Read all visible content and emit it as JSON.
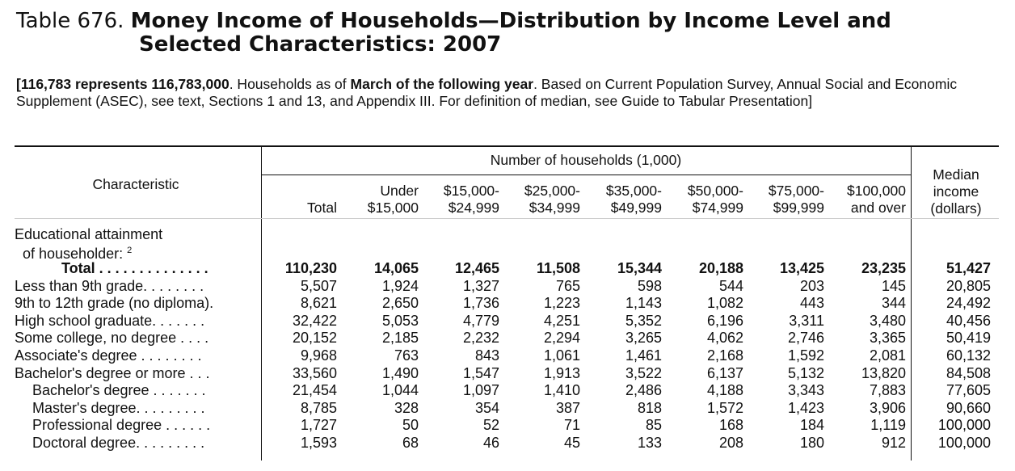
{
  "title": {
    "number": "Table 676.",
    "line1": "Money Income of Households—Distribution by Income Level and",
    "line2": "Selected Characteristics: 2007"
  },
  "note": {
    "bold1": "[116,783 represents 116,783,000",
    "text1": ". Households as of ",
    "bold2": "March of the following year",
    "text2": ". Based on Current Population Survey, Annual Social and Economic Supplement (ASEC), see text, Sections 1 and 13, and Appendix III. For definition of median, see Guide to Tabular Presentation]"
  },
  "header": {
    "characteristic": "Characteristic",
    "number_of_households": "Number of households (1,000)",
    "median_income": [
      "Median",
      "income",
      "(dollars)"
    ],
    "columns": [
      [
        "Total"
      ],
      [
        "Under",
        "$15,000"
      ],
      [
        "$15,000-",
        "$24,999"
      ],
      [
        "$25,000-",
        "$34,999"
      ],
      [
        "$35,000-",
        "$49,999"
      ],
      [
        "$50,000-",
        "$74,999"
      ],
      [
        "$75,000-",
        "$99,999"
      ],
      [
        "$100,000",
        "and over"
      ]
    ]
  },
  "section": {
    "line1": "Educational attainment",
    "line2": "of householder: ",
    "footnote": "2"
  },
  "rows": [
    {
      "label": "Total . . . . . . . . . . . . . .",
      "kind": "total",
      "values": [
        "110,230",
        "14,065",
        "12,465",
        "11,508",
        "15,344",
        "20,188",
        "13,425",
        "23,235",
        "51,427"
      ]
    },
    {
      "label": "Less than 9th grade. . . . . . . .",
      "kind": "normal",
      "values": [
        "5,507",
        "1,924",
        "1,327",
        "765",
        "598",
        "544",
        "203",
        "145",
        "20,805"
      ]
    },
    {
      "label": "9th to 12th grade (no diploma).",
      "kind": "normal",
      "values": [
        "8,621",
        "2,650",
        "1,736",
        "1,223",
        "1,143",
        "1,082",
        "443",
        "344",
        "24,492"
      ]
    },
    {
      "label": "High school graduate. . . . . . .",
      "kind": "normal",
      "values": [
        "32,422",
        "5,053",
        "4,779",
        "4,251",
        "5,352",
        "6,196",
        "3,311",
        "3,480",
        "40,456"
      ]
    },
    {
      "label": "Some college, no degree . . . .",
      "kind": "normal",
      "values": [
        "20,152",
        "2,185",
        "2,232",
        "2,294",
        "3,265",
        "4,062",
        "2,746",
        "3,365",
        "50,419"
      ]
    },
    {
      "label": "Associate's degree . . . . . . . .",
      "kind": "normal",
      "values": [
        "9,968",
        "763",
        "843",
        "1,061",
        "1,461",
        "2,168",
        "1,592",
        "2,081",
        "60,132"
      ]
    },
    {
      "label": "Bachelor's degree or more . . .",
      "kind": "normal",
      "values": [
        "33,560",
        "1,490",
        "1,547",
        "1,913",
        "3,522",
        "6,137",
        "5,132",
        "13,820",
        "84,508"
      ]
    },
    {
      "label": "Bachelor's degree . . . . . . .",
      "kind": "indent",
      "values": [
        "21,454",
        "1,044",
        "1,097",
        "1,410",
        "2,486",
        "4,188",
        "3,343",
        "7,883",
        "77,605"
      ]
    },
    {
      "label": "Master's degree. . . . . . . . .",
      "kind": "indent",
      "values": [
        "8,785",
        "328",
        "354",
        "387",
        "818",
        "1,572",
        "1,423",
        "3,906",
        "90,660"
      ]
    },
    {
      "label": "Professional degree . . . . . .",
      "kind": "indent",
      "values": [
        "1,727",
        "50",
        "52",
        "71",
        "85",
        "168",
        "184",
        "1,119",
        "100,000"
      ]
    },
    {
      "label": "Doctoral degree. . . . . . . . .",
      "kind": "indent",
      "values": [
        "1,593",
        "68",
        "46",
        "45",
        "133",
        "208",
        "180",
        "912",
        "100,000"
      ]
    }
  ]
}
